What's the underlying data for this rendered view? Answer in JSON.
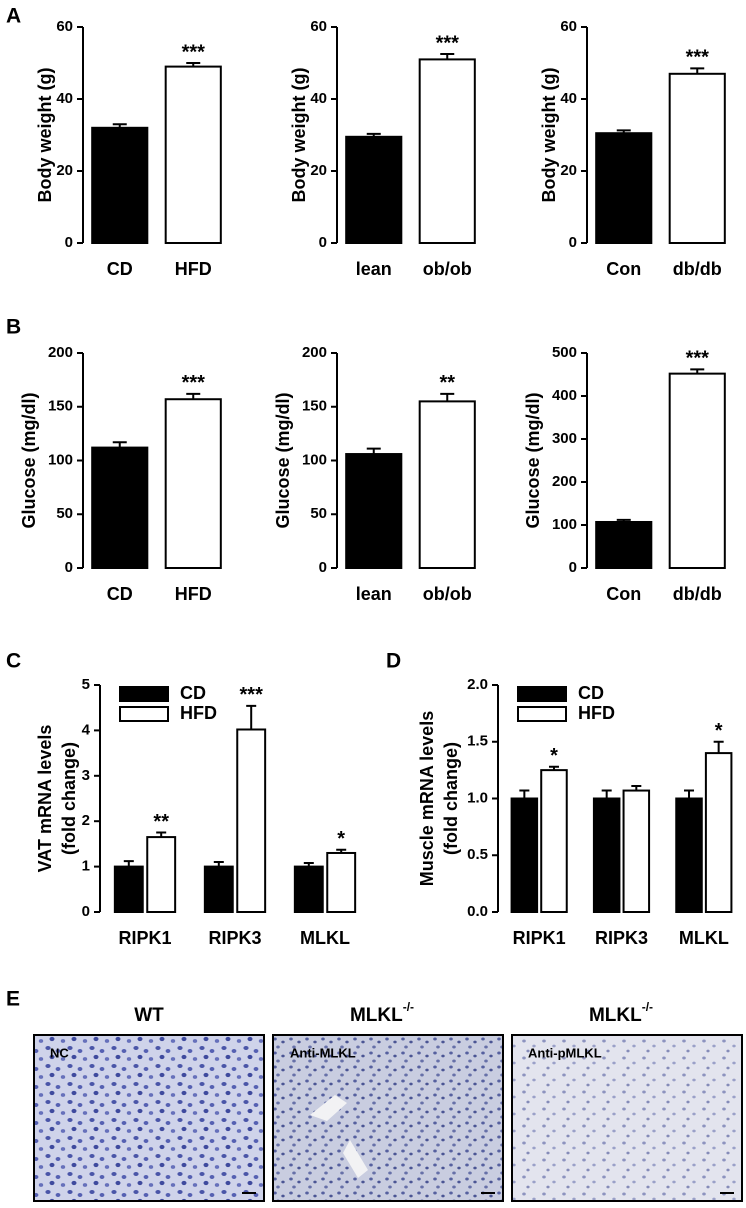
{
  "panel_labels": [
    "A",
    "B",
    "C",
    "D",
    "E"
  ],
  "chart_data": [
    {
      "type": "bar",
      "ylabel": "Body weight (g)",
      "categories": [
        "CD",
        "HFD"
      ],
      "values": [
        32,
        49
      ],
      "errors": [
        1,
        1
      ],
      "colors": [
        "#000000",
        "#ffffff"
      ],
      "annotations": [
        null,
        "***"
      ],
      "ylim": [
        0,
        60
      ],
      "yticks": [
        0,
        20,
        40,
        60
      ]
    },
    {
      "type": "bar",
      "ylabel": "Body weight (g)",
      "categories": [
        "lean",
        "ob/ob"
      ],
      "values": [
        29.5,
        51
      ],
      "errors": [
        0.8,
        1.5
      ],
      "colors": [
        "#000000",
        "#ffffff"
      ],
      "annotations": [
        null,
        "***"
      ],
      "ylim": [
        0,
        60
      ],
      "yticks": [
        0,
        20,
        40,
        60
      ]
    },
    {
      "type": "bar",
      "ylabel": "Body weight (g)",
      "categories": [
        "Con",
        "db/db"
      ],
      "values": [
        30.5,
        47
      ],
      "errors": [
        0.8,
        1.5
      ],
      "colors": [
        "#000000",
        "#ffffff"
      ],
      "annotations": [
        null,
        "***"
      ],
      "ylim": [
        0,
        60
      ],
      "yticks": [
        0,
        20,
        40,
        60
      ]
    },
    {
      "type": "bar",
      "ylabel": "Glucose (mg/dl)",
      "categories": [
        "CD",
        "HFD"
      ],
      "values": [
        112,
        157
      ],
      "errors": [
        5,
        5
      ],
      "colors": [
        "#000000",
        "#ffffff"
      ],
      "annotations": [
        null,
        "***"
      ],
      "ylim": [
        0,
        200
      ],
      "yticks": [
        0,
        50,
        100,
        150,
        200
      ]
    },
    {
      "type": "bar",
      "ylabel": "Glucose (mg/dl)",
      "categories": [
        "lean",
        "ob/ob"
      ],
      "values": [
        106,
        155
      ],
      "errors": [
        5,
        7
      ],
      "colors": [
        "#000000",
        "#ffffff"
      ],
      "annotations": [
        null,
        "**"
      ],
      "ylim": [
        0,
        200
      ],
      "yticks": [
        0,
        50,
        100,
        150,
        200
      ]
    },
    {
      "type": "bar",
      "ylabel": "Glucose (mg/dl)",
      "categories": [
        "Con",
        "db/db"
      ],
      "values": [
        107,
        452
      ],
      "errors": [
        5,
        10
      ],
      "colors": [
        "#000000",
        "#ffffff"
      ],
      "annotations": [
        null,
        "***"
      ],
      "ylim": [
        0,
        500
      ],
      "yticks": [
        0,
        100,
        200,
        300,
        400,
        500
      ]
    },
    {
      "type": "bar",
      "ylabel": [
        "VAT mRNA levels",
        "(fold change)"
      ],
      "categories": [
        "RIPK1",
        "RIPK3",
        "MLKL"
      ],
      "legend": "upper left",
      "series": [
        {
          "name": "CD",
          "color": "#000000",
          "values": [
            1,
            1,
            1
          ],
          "errors": [
            0.12,
            0.1,
            0.08
          ]
        },
        {
          "name": "HFD",
          "color": "#ffffff",
          "values": [
            1.65,
            4.02,
            1.3
          ],
          "errors": [
            0.1,
            0.52,
            0.07
          ],
          "annotations": [
            "**",
            "***",
            "*"
          ]
        }
      ],
      "ylim": [
        0,
        5
      ],
      "yticks": [
        0,
        1,
        2,
        3,
        4,
        5
      ]
    },
    {
      "type": "bar",
      "ylabel": [
        "Muscle mRNA levels",
        "(fold change)"
      ],
      "categories": [
        "RIPK1",
        "RIPK3",
        "MLKL"
      ],
      "legend": "upper left",
      "series": [
        {
          "name": "CD",
          "color": "#000000",
          "values": [
            1,
            1,
            1
          ],
          "errors": [
            0.07,
            0.07,
            0.07
          ]
        },
        {
          "name": "HFD",
          "color": "#ffffff",
          "values": [
            1.25,
            1.07,
            1.4
          ],
          "errors": [
            0.03,
            0.04,
            0.1
          ],
          "annotations": [
            "*",
            null,
            "*"
          ]
        }
      ],
      "ylim": [
        0,
        2
      ],
      "yticks": [
        {
          "value": 0,
          "label": "0.0"
        },
        {
          "value": 0.5,
          "label": "0.5"
        },
        {
          "value": 1,
          "label": "1.0"
        },
        {
          "value": 1.5,
          "label": "1.5"
        },
        {
          "value": 2,
          "label": "2.0"
        }
      ]
    }
  ],
  "images": {
    "columns": [
      {
        "title": "WT",
        "label": "NC"
      },
      {
        "title": "MLKL",
        "title_sup": "-/-",
        "label": "Anti-MLKL"
      },
      {
        "title": "MLKL",
        "title_sup": "-/-",
        "label": "Anti-pMLKL"
      }
    ]
  }
}
